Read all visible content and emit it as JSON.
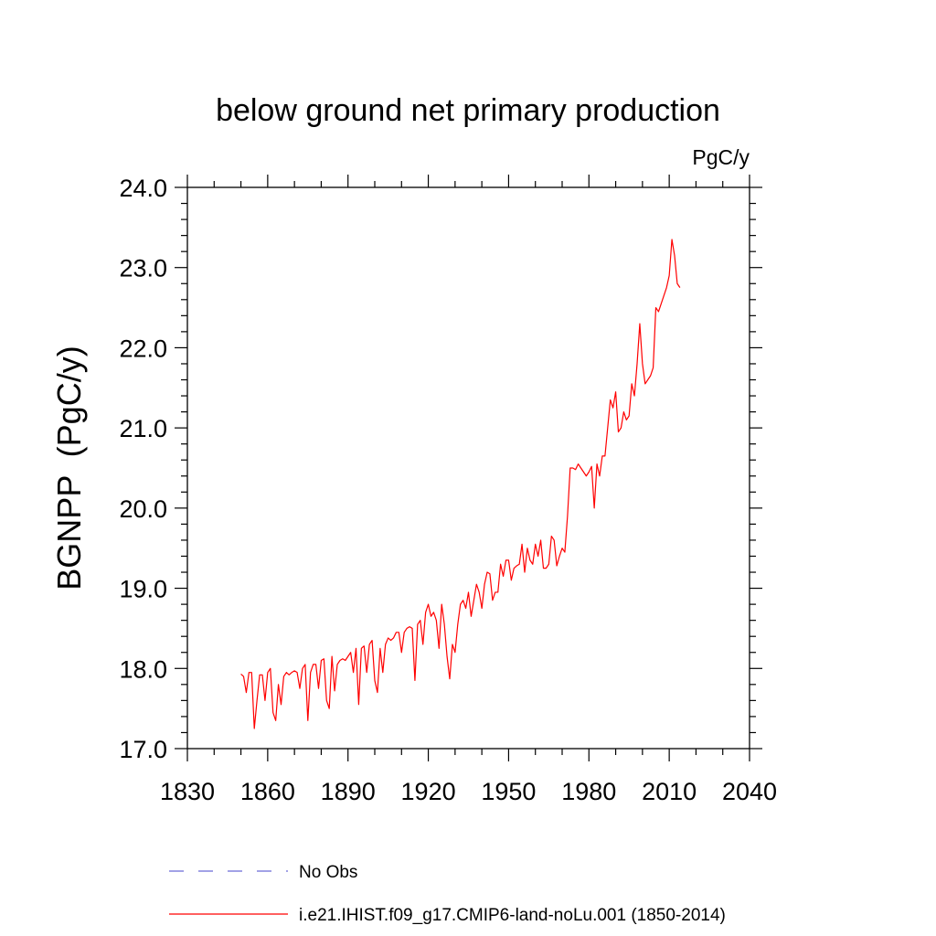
{
  "chart_data": {
    "type": "line",
    "title": "below ground net primary production",
    "units": "PgC/y",
    "ylabel": "BGNPP  (PgC/y)",
    "xlabel": "",
    "xlim": [
      1830,
      2040
    ],
    "ylim": [
      17.0,
      24.0
    ],
    "x_ticks": [
      1830,
      1860,
      1890,
      1920,
      1950,
      1980,
      2010,
      2040
    ],
    "x_tick_labels": [
      "1830",
      "1860",
      "1890",
      "1920",
      "1950",
      "1980",
      "2010",
      "2040"
    ],
    "y_ticks": [
      17.0,
      18.0,
      19.0,
      20.0,
      21.0,
      22.0,
      23.0,
      24.0
    ],
    "y_tick_labels": [
      "17.0",
      "18.0",
      "19.0",
      "20.0",
      "21.0",
      "22.0",
      "23.0",
      "24.0"
    ],
    "grid": false,
    "legend_position": "bottom",
    "series": [
      {
        "name": "No Obs",
        "color": "#6b6bd6",
        "dash": "dashed",
        "x": [],
        "values": []
      },
      {
        "name": "i.e21.IHIST.f09_g17.CMIP6-land-noLu.001 (1850-2014)",
        "color": "#ff0000",
        "dash": "solid",
        "x": [
          1850,
          1851,
          1852,
          1853,
          1854,
          1855,
          1856,
          1857,
          1858,
          1859,
          1860,
          1861,
          1862,
          1863,
          1864,
          1865,
          1866,
          1867,
          1868,
          1869,
          1870,
          1871,
          1872,
          1873,
          1874,
          1875,
          1876,
          1877,
          1878,
          1879,
          1880,
          1881,
          1882,
          1883,
          1884,
          1885,
          1886,
          1887,
          1888,
          1889,
          1890,
          1891,
          1892,
          1893,
          1894,
          1895,
          1896,
          1897,
          1898,
          1899,
          1900,
          1901,
          1902,
          1903,
          1904,
          1905,
          1906,
          1907,
          1908,
          1909,
          1910,
          1911,
          1912,
          1913,
          1914,
          1915,
          1916,
          1917,
          1918,
          1919,
          1920,
          1921,
          1922,
          1923,
          1924,
          1925,
          1926,
          1927,
          1928,
          1929,
          1930,
          1931,
          1932,
          1933,
          1934,
          1935,
          1936,
          1937,
          1938,
          1939,
          1940,
          1941,
          1942,
          1943,
          1944,
          1945,
          1946,
          1947,
          1948,
          1949,
          1950,
          1951,
          1952,
          1953,
          1954,
          1955,
          1956,
          1957,
          1958,
          1959,
          1960,
          1961,
          1962,
          1963,
          1964,
          1965,
          1966,
          1967,
          1968,
          1969,
          1970,
          1971,
          1972,
          1973,
          1974,
          1975,
          1976,
          1977,
          1978,
          1979,
          1980,
          1981,
          1982,
          1983,
          1984,
          1985,
          1986,
          1987,
          1988,
          1989,
          1990,
          1991,
          1992,
          1993,
          1994,
          1995,
          1996,
          1997,
          1998,
          1999,
          2000,
          2001,
          2002,
          2003,
          2004,
          2005,
          2006,
          2007,
          2008,
          2009,
          2010,
          2011,
          2012,
          2013,
          2014
        ],
        "values": [
          17.93,
          17.9,
          17.7,
          17.95,
          17.95,
          17.25,
          17.6,
          17.92,
          17.92,
          17.6,
          17.95,
          18.0,
          17.45,
          17.35,
          17.8,
          17.55,
          17.9,
          17.95,
          17.92,
          17.95,
          17.97,
          17.95,
          17.75,
          18.0,
          18.05,
          17.35,
          17.95,
          18.05,
          18.05,
          17.75,
          18.1,
          18.12,
          17.6,
          17.5,
          18.15,
          17.72,
          18.05,
          18.1,
          18.12,
          18.1,
          18.15,
          18.2,
          17.95,
          18.25,
          17.55,
          18.25,
          18.28,
          17.95,
          18.3,
          18.35,
          17.85,
          17.7,
          18.25,
          17.95,
          18.3,
          18.38,
          18.35,
          18.38,
          18.45,
          18.45,
          18.2,
          18.45,
          18.5,
          18.52,
          18.5,
          17.85,
          18.55,
          18.6,
          18.3,
          18.7,
          18.8,
          18.65,
          18.7,
          18.6,
          18.25,
          18.8,
          18.55,
          18.15,
          17.87,
          18.3,
          18.2,
          18.55,
          18.8,
          18.85,
          18.75,
          18.95,
          18.65,
          18.85,
          19.05,
          18.95,
          18.75,
          19.05,
          19.2,
          19.18,
          18.85,
          18.95,
          18.95,
          19.3,
          19.15,
          19.35,
          19.35,
          19.1,
          19.25,
          19.28,
          19.3,
          19.55,
          19.2,
          19.5,
          19.35,
          19.3,
          19.55,
          19.4,
          19.6,
          19.25,
          19.25,
          19.3,
          19.65,
          19.6,
          19.28,
          19.4,
          19.5,
          19.45,
          19.9,
          20.5,
          20.5,
          20.48,
          20.55,
          20.5,
          20.45,
          20.4,
          20.45,
          20.52,
          20.0,
          20.55,
          20.4,
          20.65,
          20.65,
          21.0,
          21.35,
          21.25,
          21.45,
          20.95,
          21.0,
          21.2,
          21.1,
          21.15,
          21.55,
          21.4,
          21.8,
          22.3,
          21.8,
          21.55,
          21.6,
          21.65,
          21.75,
          22.5,
          22.45,
          22.55,
          22.65,
          22.75,
          22.9,
          23.35,
          23.15,
          22.8,
          22.75
        ]
      }
    ]
  }
}
